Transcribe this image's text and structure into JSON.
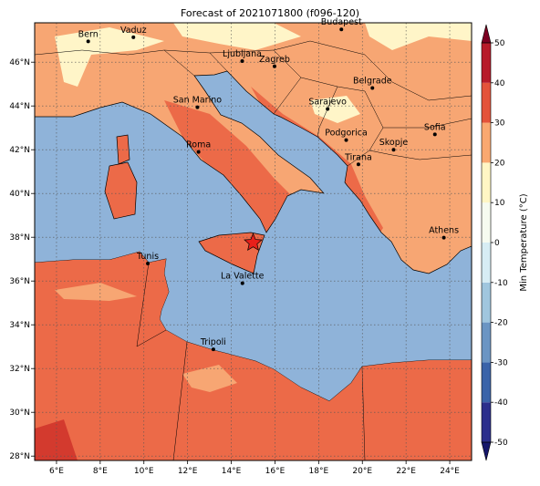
{
  "map": {
    "title": "Forecast of 2021071800 (f096-120)",
    "xlim": [
      5,
      25
    ],
    "ylim": [
      27.8,
      47.8
    ],
    "xticks": [
      {
        "value": 6,
        "label": "6°E"
      },
      {
        "value": 8,
        "label": "8°E"
      },
      {
        "value": 10,
        "label": "10°E"
      },
      {
        "value": 12,
        "label": "12°E"
      },
      {
        "value": 14,
        "label": "14°E"
      },
      {
        "value": 16,
        "label": "16°E"
      },
      {
        "value": 18,
        "label": "18°E"
      },
      {
        "value": 20,
        "label": "20°E"
      },
      {
        "value": 22,
        "label": "22°E"
      },
      {
        "value": 24,
        "label": "24°E"
      }
    ],
    "yticks": [
      {
        "value": 28,
        "label": "28°N"
      },
      {
        "value": 30,
        "label": "30°N"
      },
      {
        "value": 32,
        "label": "32°N"
      },
      {
        "value": 34,
        "label": "34°N"
      },
      {
        "value": 36,
        "label": "36°N"
      },
      {
        "value": 38,
        "label": "38°N"
      },
      {
        "value": 40,
        "label": "40°N"
      },
      {
        "value": 42,
        "label": "42°N"
      },
      {
        "value": 44,
        "label": "44°N"
      },
      {
        "value": 46,
        "label": "46°N"
      }
    ],
    "grid": true,
    "cities": [
      {
        "name": "Bern",
        "lon": 7.45,
        "lat": 46.95
      },
      {
        "name": "Vaduz",
        "lon": 9.52,
        "lat": 47.14
      },
      {
        "name": "Budapest",
        "lon": 19.04,
        "lat": 47.5
      },
      {
        "name": "Ljubljana",
        "lon": 14.5,
        "lat": 46.05
      },
      {
        "name": "Zagreb",
        "lon": 15.98,
        "lat": 45.81
      },
      {
        "name": "Belgrade",
        "lon": 20.46,
        "lat": 44.82
      },
      {
        "name": "San Marino",
        "lon": 12.45,
        "lat": 43.94
      },
      {
        "name": "Sarajevo",
        "lon": 18.41,
        "lat": 43.86
      },
      {
        "name": "Sofia",
        "lon": 23.32,
        "lat": 42.7
      },
      {
        "name": "Podgorica",
        "lon": 19.26,
        "lat": 42.44
      },
      {
        "name": "Skopje",
        "lon": 21.43,
        "lat": 42.0
      },
      {
        "name": "Roma",
        "lon": 12.5,
        "lat": 41.9
      },
      {
        "name": "Tirana",
        "lon": 19.82,
        "lat": 41.33
      },
      {
        "name": "Athens",
        "lon": 23.73,
        "lat": 37.98
      },
      {
        "name": "Tunis",
        "lon": 10.18,
        "lat": 36.8
      },
      {
        "name": "La Valette",
        "lon": 14.51,
        "lat": 35.9
      },
      {
        "name": "Tripoli",
        "lon": 13.18,
        "lat": 32.88
      }
    ],
    "star": {
      "lon": 15.0,
      "lat": 37.75,
      "color": "#e8201a"
    },
    "colorbar": {
      "label": "Min Temperature (°C)",
      "lim": [
        -50,
        50
      ],
      "ticks": [
        -50,
        -40,
        -30,
        -20,
        -10,
        0,
        10,
        20,
        30,
        40,
        50
      ],
      "colors": [
        "#2b2e8c",
        "#3a63a9",
        "#6b95c3",
        "#a0c6de",
        "#d7edf4",
        "#f6fbf0",
        "#fff6c4",
        "#f9a870",
        "#e4533a",
        "#b71b29"
      ],
      "under": "#15166a",
      "over": "#7c0021"
    }
  }
}
